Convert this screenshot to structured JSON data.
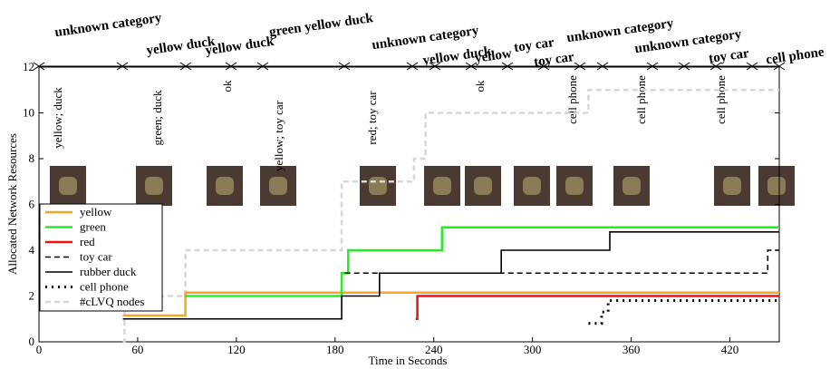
{
  "chart_data": {
    "type": "step-line",
    "x_label": "Time in Seconds",
    "y_label": "Allocated Network Resources",
    "xlim": [
      0,
      450
    ],
    "xticks": [
      0,
      60,
      120,
      180,
      240,
      300,
      360,
      420
    ],
    "ylim": [
      0,
      12
    ],
    "yticks": [
      0,
      2,
      4,
      6,
      8,
      10,
      12
    ],
    "legend": "lower-left",
    "series": [
      {
        "name": "yellow",
        "color": "#f5a623",
        "style": "solid",
        "x": [
          51,
          89,
          450
        ],
        "values": [
          1.15,
          2.15,
          2.15
        ]
      },
      {
        "name": "green",
        "color": "#22ee22",
        "style": "solid",
        "x": [
          89,
          184,
          186,
          188,
          245,
          450
        ],
        "values": [
          2,
          3,
          3,
          4,
          5,
          5
        ]
      },
      {
        "name": "red",
        "color": "#ee1111",
        "style": "solid",
        "x": [
          229,
          230,
          450
        ],
        "values": [
          1,
          2,
          2
        ]
      },
      {
        "name": "toy car",
        "color": "#000000",
        "style": "dashed",
        "x": [
          186,
          443,
          450
        ],
        "values": [
          3,
          4,
          4
        ]
      },
      {
        "name": "rubber duck",
        "color": "#000000",
        "style": "solid",
        "x": [
          51,
          184,
          207,
          281,
          347,
          450
        ],
        "values": [
          1,
          2,
          3,
          4,
          4.8,
          4.8
        ]
      },
      {
        "name": "cell phone",
        "color": "#000000",
        "style": "dotted",
        "x": [
          334,
          342,
          346,
          450
        ],
        "values": [
          0.8,
          1.3,
          1.8,
          1.8
        ]
      },
      {
        "name": "#cLVQ nodes",
        "color": "#d8d8d8",
        "style": "dashed",
        "x": [
          51,
          52,
          89,
          184,
          228,
          235,
          334,
          450
        ],
        "values": [
          0,
          2,
          4,
          7,
          8,
          10,
          11,
          11
        ]
      }
    ],
    "top_labels": [
      "unknown category",
      "yellow duck",
      "yellow duck",
      "green yellow duck",
      "unknown category",
      "yellow duck",
      "yellow",
      "toy car",
      "toy car",
      "unknown category",
      "unknown category",
      "toy car",
      "cell phone"
    ],
    "vertical_labels": [
      "yellow; duck",
      "green; duck",
      "ok",
      "yellow; toy car",
      "red; toy car",
      "ok",
      "cell phone",
      "cell phone",
      "cell phone"
    ]
  }
}
